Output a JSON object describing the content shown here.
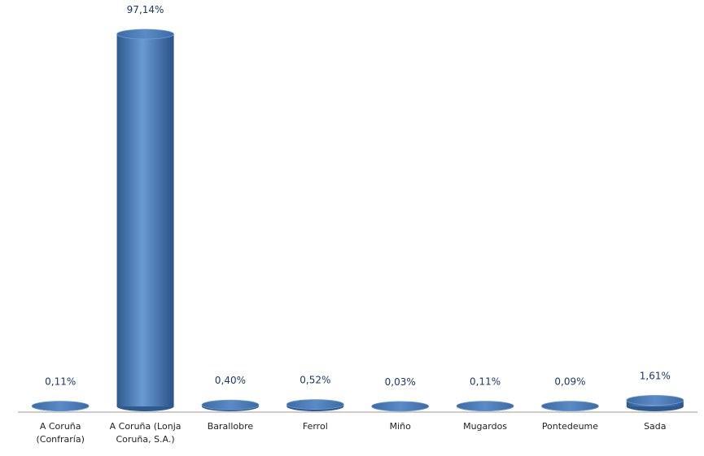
{
  "chart_data": {
    "type": "bar",
    "categories": [
      "A Coruña (Confraría)",
      "A Coruña (Lonja Coruña, S.A.)",
      "Barallobre",
      "Ferrol",
      "Miño",
      "Mugardos",
      "Pontedeume",
      "Sada"
    ],
    "values": [
      0.11,
      97.14,
      0.4,
      0.52,
      0.03,
      0.11,
      0.09,
      1.61
    ],
    "value_labels": [
      "0,11%",
      "97,14%",
      "0,40%",
      "0,52%",
      "0,03%",
      "0,11%",
      "0,09%",
      "1,61%"
    ],
    "color": "#4f81bd"
  }
}
